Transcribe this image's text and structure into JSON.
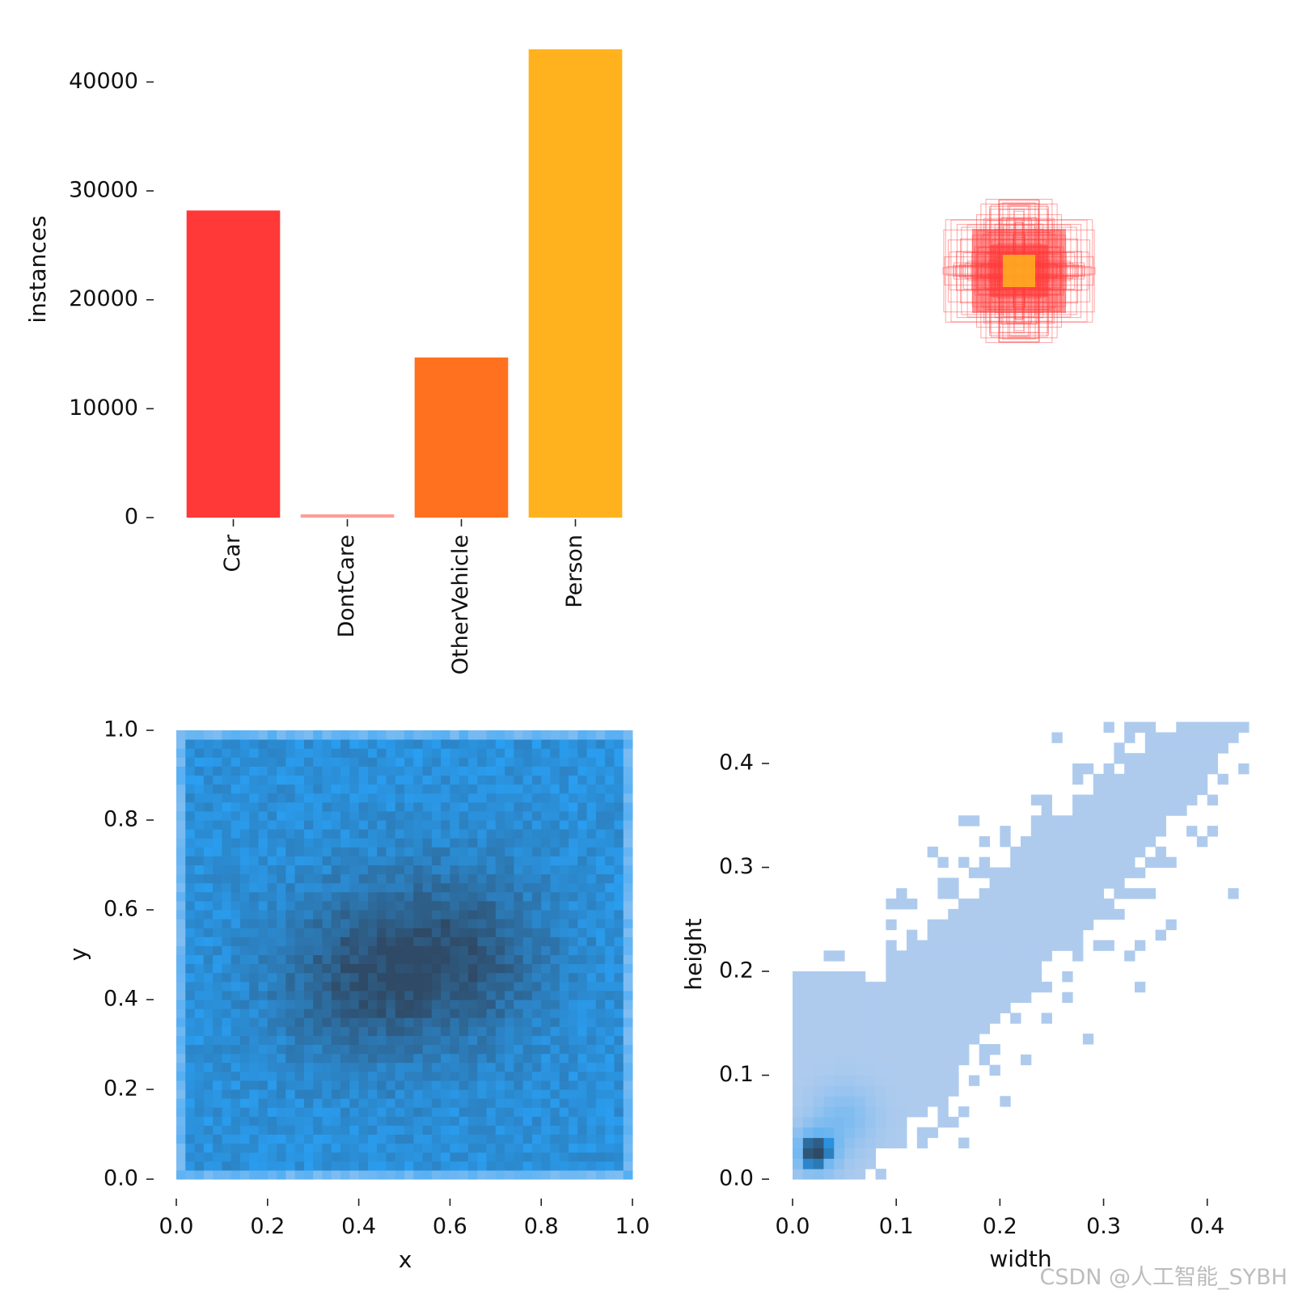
{
  "chart_data": [
    {
      "type": "bar",
      "categories": [
        "Car",
        "DontCare",
        "OtherVehicle",
        "Person"
      ],
      "values": [
        28200,
        300,
        14700,
        43000
      ],
      "colors": [
        "#ff3838",
        "#ff9d97",
        "#ff701f",
        "#ffb21d"
      ],
      "xlabel": "",
      "ylabel": "instances",
      "ylim": [
        0,
        43000
      ],
      "yticks": [
        0,
        10000,
        20000,
        30000,
        40000
      ],
      "ytick_labels": [
        "0",
        "10000",
        "20000",
        "30000",
        "40000"
      ]
    },
    {
      "type": "scatter",
      "description": "overlaid bounding boxes centered at the same point",
      "box_color": "#ff3838",
      "core_color": "#ffb21d"
    },
    {
      "type": "heatmap",
      "xlabel": "x",
      "ylabel": "y",
      "xlim": [
        0.0,
        1.0
      ],
      "ylim": [
        0.0,
        1.0
      ],
      "xticks": [
        0.0,
        0.2,
        0.4,
        0.6,
        0.8,
        1.0
      ],
      "xtick_labels": [
        "0.0",
        "0.2",
        "0.4",
        "0.6",
        "0.8",
        "1.0"
      ],
      "yticks": [
        0.0,
        0.2,
        0.4,
        0.6,
        0.8,
        1.0
      ],
      "ytick_labels": [
        "0.0",
        "0.2",
        "0.4",
        "0.6",
        "0.8",
        "1.0"
      ],
      "dense_centers": [
        [
          0.4,
          0.45
        ],
        [
          0.63,
          0.5
        ]
      ],
      "low_color": "#2aa0f4",
      "high_color": "#2f4a66"
    },
    {
      "type": "heatmap",
      "xlabel": "width",
      "ylabel": "height",
      "xlim": [
        0.0,
        0.44
      ],
      "ylim": [
        0.0,
        0.4
      ],
      "xticks": [
        0.0,
        0.1,
        0.2,
        0.3,
        0.4
      ],
      "xtick_labels": [
        "0.0",
        "0.1",
        "0.2",
        "0.3",
        "0.4"
      ],
      "yticks": [
        0.0,
        0.1,
        0.2,
        0.3,
        0.4
      ],
      "ytick_labels": [
        "0.0",
        "0.1",
        "0.2",
        "0.3",
        "0.4"
      ],
      "peak": [
        0.022,
        0.027
      ],
      "low_color": "#aecbee",
      "high_color": "#2f4a66"
    }
  ],
  "watermark": "CSDN @人工智能_SYBH"
}
